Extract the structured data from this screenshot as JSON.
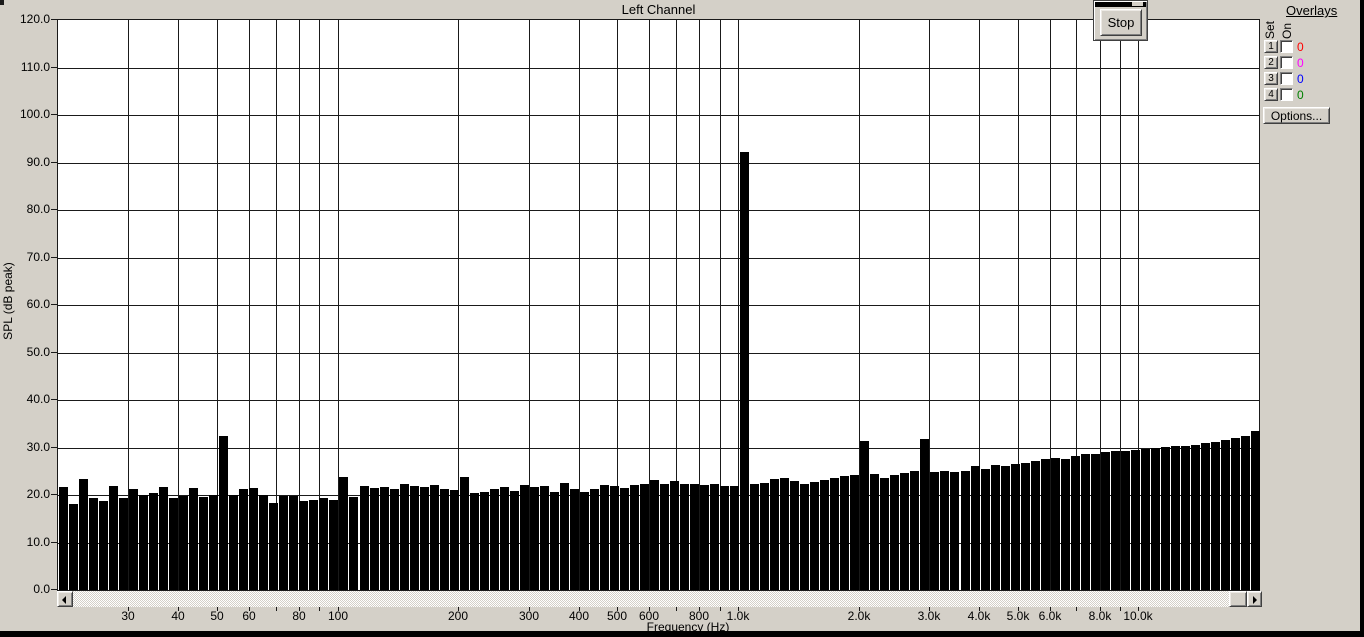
{
  "stop_button": {
    "label": "Stop"
  },
  "overlays_panel": {
    "title": "Overlays",
    "col_set": "Set",
    "col_on": "On",
    "rows": [
      {
        "set_label": "1",
        "value": "0",
        "color": "#ff0000",
        "checked": false
      },
      {
        "set_label": "2",
        "value": "0",
        "color": "#ff00ff",
        "checked": false
      },
      {
        "set_label": "3",
        "value": "0",
        "color": "#0000ff",
        "checked": false
      },
      {
        "set_label": "4",
        "value": "0",
        "color": "#008000",
        "checked": false
      }
    ],
    "options_button": "Options..."
  },
  "chart_data": {
    "type": "bar",
    "title": "Left Channel",
    "xlabel": "Frequency (Hz)",
    "ylabel": "SPL (dB peak)",
    "x_scale": "log",
    "x_range_hz": [
      20,
      20000
    ],
    "ylim": [
      0,
      120
    ],
    "grid": true,
    "bar_color": "#000000",
    "plot_bg": "#ffffff",
    "bands_per_octave": 12,
    "first_band_hz": 20,
    "y_ticks": [
      {
        "db": 120,
        "label": "120.0"
      },
      {
        "db": 110,
        "label": "110.0"
      },
      {
        "db": 100,
        "label": "100.0"
      },
      {
        "db": 90,
        "label": "90.0"
      },
      {
        "db": 80,
        "label": "80.0"
      },
      {
        "db": 70,
        "label": "70.0"
      },
      {
        "db": 60,
        "label": "60.0"
      },
      {
        "db": 50,
        "label": "50.0"
      },
      {
        "db": 40,
        "label": "40.0"
      },
      {
        "db": 30,
        "label": "30.0"
      },
      {
        "db": 20,
        "label": "20.0"
      },
      {
        "db": 10,
        "label": "10.0"
      },
      {
        "db": 0,
        "label": "0.0"
      }
    ],
    "x_ticks": [
      {
        "hz": 30,
        "label": "30"
      },
      {
        "hz": 40,
        "label": "40"
      },
      {
        "hz": 50,
        "label": "50"
      },
      {
        "hz": 60,
        "label": "60"
      },
      {
        "hz": 70,
        "label": ""
      },
      {
        "hz": 80,
        "label": "80"
      },
      {
        "hz": 90,
        "label": ""
      },
      {
        "hz": 100,
        "label": "100"
      },
      {
        "hz": 200,
        "label": "200"
      },
      {
        "hz": 300,
        "label": "300"
      },
      {
        "hz": 400,
        "label": "400"
      },
      {
        "hz": 500,
        "label": "500"
      },
      {
        "hz": 600,
        "label": "600"
      },
      {
        "hz": 700,
        "label": ""
      },
      {
        "hz": 800,
        "label": "800"
      },
      {
        "hz": 900,
        "label": ""
      },
      {
        "hz": 1000,
        "label": "1.0k"
      },
      {
        "hz": 2000,
        "label": "2.0k"
      },
      {
        "hz": 3000,
        "label": "3.0k"
      },
      {
        "hz": 4000,
        "label": "4.0k"
      },
      {
        "hz": 5000,
        "label": "5.0k"
      },
      {
        "hz": 6000,
        "label": "6.0k"
      },
      {
        "hz": 7000,
        "label": ""
      },
      {
        "hz": 8000,
        "label": "8.0k"
      },
      {
        "hz": 9000,
        "label": ""
      },
      {
        "hz": 10000,
        "label": "10.0k"
      }
    ],
    "values_db": [
      21.7,
      18.1,
      23.3,
      19.3,
      18.8,
      21.9,
      19.4,
      21.2,
      20.0,
      20.5,
      21.6,
      19.3,
      19.8,
      21.4,
      19.6,
      19.9,
      32.5,
      20.0,
      21.3,
      21.4,
      20.0,
      18.3,
      19.8,
      19.8,
      18.7,
      18.9,
      19.3,
      19.0,
      23.8,
      19.6,
      21.8,
      21.4,
      21.7,
      21.2,
      22.3,
      21.9,
      21.6,
      22.1,
      21.3,
      21.0,
      23.7,
      20.4,
      20.6,
      21.3,
      21.7,
      20.9,
      22.1,
      21.7,
      21.9,
      20.7,
      22.6,
      21.2,
      20.6,
      21.2,
      22.1,
      21.9,
      21.5,
      22.2,
      22.3,
      23.1,
      22.4,
      22.9,
      22.3,
      22.4,
      22.0,
      22.3,
      21.9,
      21.8,
      92.3,
      22.3,
      22.6,
      23.3,
      23.5,
      22.9,
      22.4,
      22.8,
      23.2,
      23.6,
      24.0,
      24.3,
      31.4,
      24.4,
      23.5,
      24.2,
      24.7,
      25.0,
      31.8,
      24.9,
      25.1,
      24.8,
      25.0,
      26.2,
      25.5,
      26.3,
      26.2,
      26.6,
      26.8,
      27.2,
      27.5,
      27.7,
      27.6,
      28.2,
      28.7,
      28.6,
      29.1,
      29.2,
      29.3,
      29.5,
      29.7,
      29.9,
      30.0,
      30.4,
      30.3,
      30.6,
      31.0,
      31.2,
      31.5,
      32.0,
      32.5,
      33.5
    ]
  }
}
